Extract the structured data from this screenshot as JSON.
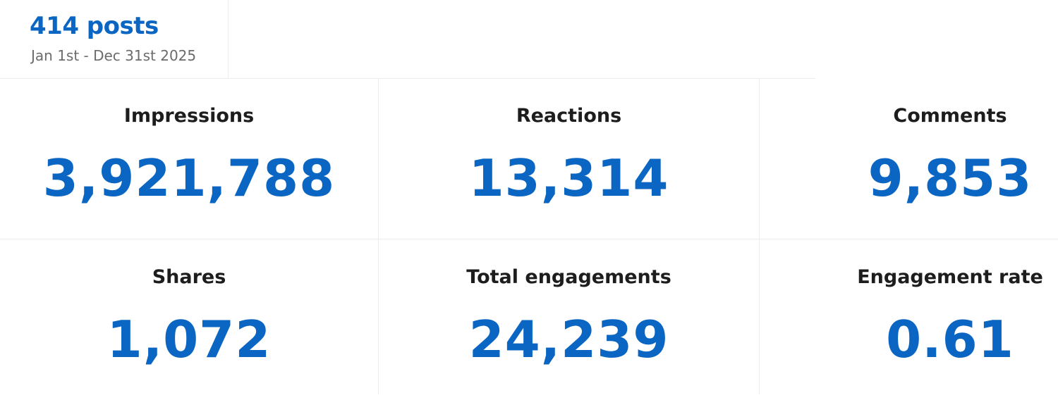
{
  "summary": {
    "posts": "414 posts",
    "date_range": "Jan 1st  -  Dec 31st 2025"
  },
  "metrics": [
    {
      "label": "Impressions",
      "value": "3,921,788"
    },
    {
      "label": "Reactions",
      "value": "13,314"
    },
    {
      "label": "Comments",
      "value": "9,853"
    },
    {
      "label": "Shares",
      "value": "1,072"
    },
    {
      "label": "Total engagements",
      "value": "24,239"
    },
    {
      "label": "Engagement rate",
      "value": "0.61"
    }
  ],
  "colors": {
    "accent": "#0a66c2",
    "label_text": "#1d1d1d",
    "muted_text": "#6b6b6b",
    "divider": "#ececec"
  }
}
